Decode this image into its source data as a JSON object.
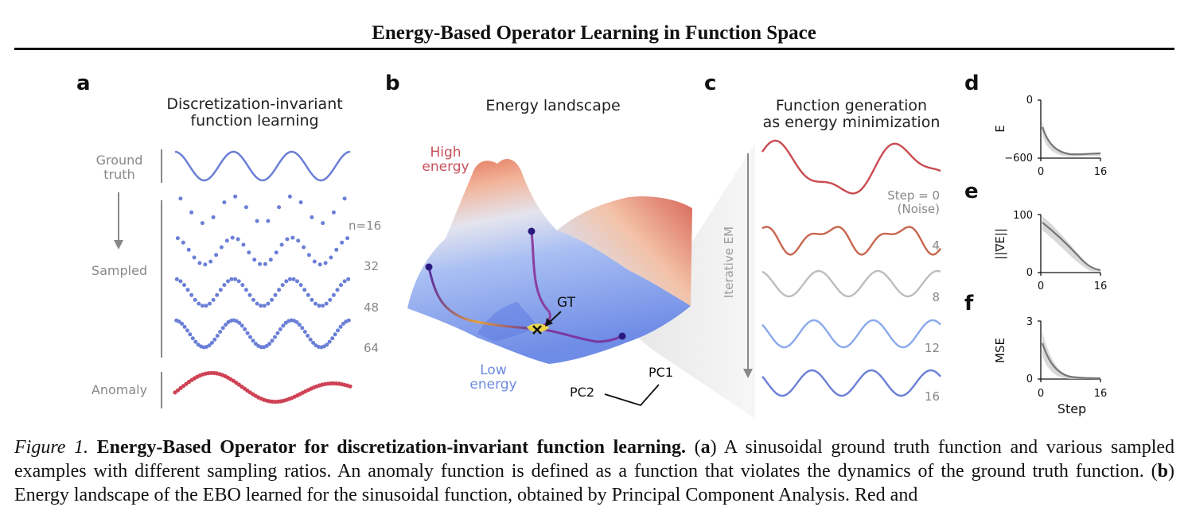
{
  "header": {
    "title": "Energy-Based Operator Learning in Function Space"
  },
  "panel_a": {
    "letter": "a",
    "title_line1": "Discretization-invariant",
    "title_line2": "function learning",
    "ground_truth_line1": "Ground",
    "ground_truth_line2": "truth",
    "sampled": "Sampled",
    "anomaly": "Anomaly",
    "sample_counts": [
      "n=16",
      "32",
      "48",
      "64"
    ],
    "colors": {
      "truth": "#6a7fd6",
      "anomaly": "#cf4255"
    }
  },
  "panel_b": {
    "letter": "b",
    "title": "Energy landscape",
    "high_line1": "High",
    "high_line2": "energy",
    "low_line1": "Low",
    "low_line2": "energy",
    "gt_label": "GT",
    "axis1": "PC1",
    "axis2": "PC2"
  },
  "panel_c": {
    "letter": "c",
    "title_line1": "Function generation",
    "title_line2": "as energy minimization",
    "arrow_label": "Iterative EM",
    "step_line1": "Step = 0",
    "step_line2": "(Noise)",
    "steps": [
      "4",
      "8",
      "12",
      "16"
    ],
    "colors": [
      "#c94b50",
      "#c8664e",
      "#bdbdbd",
      "#8aa9ec",
      "#6a7fd6"
    ]
  },
  "panel_d": {
    "letter": "d",
    "ylabel": "E",
    "ytop": "0",
    "ybottom": "−600",
    "x0": "0",
    "x1": "16"
  },
  "panel_e": {
    "letter": "e",
    "ylabel": "||∇E||",
    "ytop": "100",
    "ybottom": "0",
    "x0": "0",
    "x1": "16"
  },
  "panel_f": {
    "letter": "f",
    "ylabel": "MSE",
    "ytop": "3",
    "ybottom": "0",
    "x0": "0",
    "x1": "16",
    "xlabel": "Step"
  },
  "caption": {
    "fig": "Figure 1.",
    "bold": "Energy-Based Operator for discretization-invariant function learning.",
    "a_open": "(",
    "a_letter": "a",
    "a_close": ")",
    "text1": " A sinusoidal ground truth function and various sampled examples with different sampling ratios. An anomaly function is defined as a function that violates the dynamics of the ground truth function. (",
    "b_letter": "b",
    "text2": ") Energy landscape of the EBO learned for the sinusoidal function, obtained by Principal Component Analysis. Red and"
  }
}
